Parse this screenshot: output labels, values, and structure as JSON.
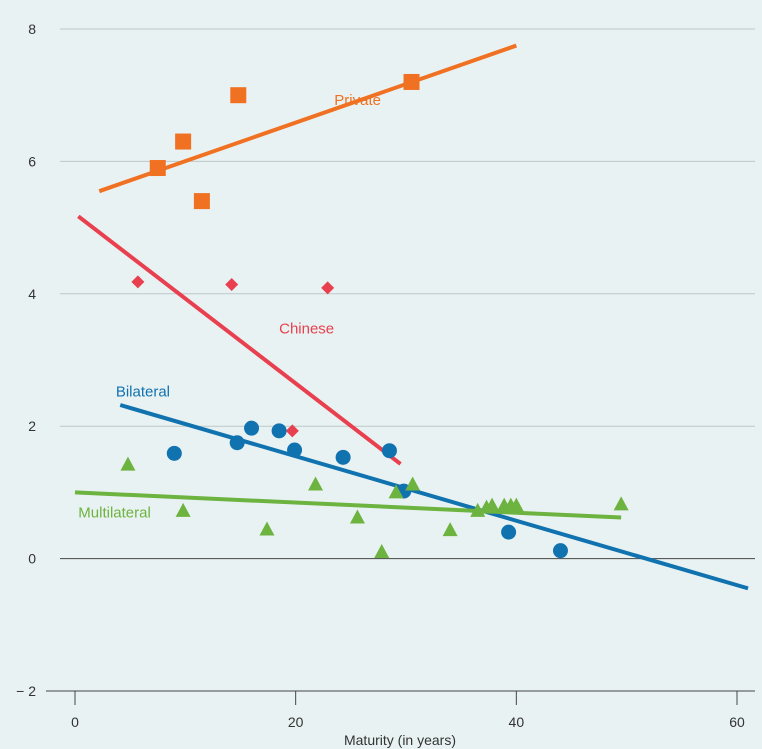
{
  "chart_data": {
    "type": "scatter",
    "xlabel": "Maturity (in years)",
    "ylabel": "",
    "xlim": [
      -2.5,
      62
    ],
    "ylim": [
      -2,
      8.4
    ],
    "x_ticks": [
      0,
      20,
      40,
      60
    ],
    "y_ticks": [
      -2,
      0,
      2,
      4,
      6,
      8
    ],
    "x_tick_labels": [
      "0",
      "20",
      "40",
      "60"
    ],
    "y_tick_labels": [
      "− 2",
      "0",
      "2",
      "4",
      "6",
      "8"
    ],
    "grid": "horizontal",
    "series": [
      {
        "name": "Private",
        "marker": "square",
        "color": "#f07122",
        "points": [
          [
            7.5,
            5.9
          ],
          [
            9.8,
            6.3
          ],
          [
            11.5,
            5.4
          ],
          [
            14.8,
            7.0
          ],
          [
            30.5,
            7.2
          ]
        ],
        "trend": [
          [
            2.2,
            5.55
          ],
          [
            40,
            7.75
          ]
        ],
        "label_at": [
          23.5,
          6.85
        ]
      },
      {
        "name": "Chinese",
        "marker": "diamond",
        "color": "#e8404f",
        "points": [
          [
            5.7,
            4.18
          ],
          [
            14.2,
            4.14
          ],
          [
            19.7,
            1.93
          ],
          [
            22.9,
            4.09
          ]
        ],
        "trend": [
          [
            0.3,
            5.17
          ],
          [
            29.5,
            1.43
          ]
        ],
        "label_at": [
          18.5,
          3.4
        ]
      },
      {
        "name": "Bilateral",
        "marker": "circle",
        "color": "#1172b0",
        "points": [
          [
            9.0,
            1.59
          ],
          [
            14.7,
            1.75
          ],
          [
            16.0,
            1.97
          ],
          [
            18.5,
            1.93
          ],
          [
            19.9,
            1.64
          ],
          [
            24.3,
            1.53
          ],
          [
            28.5,
            1.63
          ],
          [
            29.8,
            1.02
          ],
          [
            39.3,
            0.4
          ],
          [
            44.0,
            0.12
          ]
        ],
        "trend": [
          [
            4.1,
            2.32
          ],
          [
            61,
            -0.45
          ]
        ],
        "label_at": [
          3.7,
          2.45
        ]
      },
      {
        "name": "Multilateral",
        "marker": "triangle",
        "color": "#6db33f",
        "points": [
          [
            4.8,
            1.42
          ],
          [
            9.8,
            0.72
          ],
          [
            17.4,
            0.44
          ],
          [
            21.8,
            1.12
          ],
          [
            25.6,
            0.62
          ],
          [
            27.8,
            0.1
          ],
          [
            29.1,
            1.0
          ],
          [
            30.6,
            1.12
          ],
          [
            34.0,
            0.43
          ],
          [
            36.5,
            0.72
          ],
          [
            37.3,
            0.77
          ],
          [
            37.8,
            0.8
          ],
          [
            38.9,
            0.8
          ],
          [
            39.5,
            0.8
          ],
          [
            40.0,
            0.8
          ],
          [
            49.5,
            0.82
          ]
        ],
        "trend": [
          [
            0,
            1.0
          ],
          [
            49.5,
            0.62
          ]
        ],
        "label_at": [
          0.3,
          0.62
        ]
      }
    ]
  }
}
